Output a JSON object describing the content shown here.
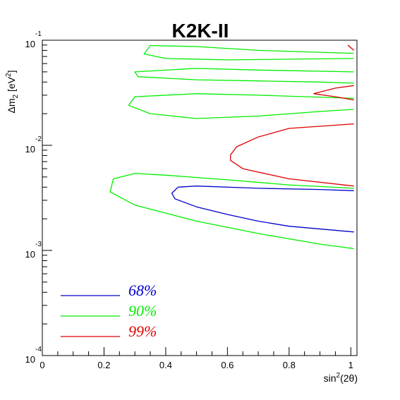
{
  "chart_data": {
    "type": "line",
    "title": "K2K-II",
    "xlabel": {
      "base": "sin",
      "sup": "2",
      "rest": "(2θ)"
    },
    "ylabel": {
      "delta": "Δm",
      "sub": "2",
      "unit_open": " [eV",
      "unit_sup": "2",
      "unit_close": "]"
    },
    "xlim": [
      0,
      1.02
    ],
    "ylim": [
      0.0001,
      0.1
    ],
    "yscale": "log",
    "x_ticks": [
      "0",
      "0.2",
      "0.4",
      "0.6",
      "0.8",
      "1"
    ],
    "y_ticks": [
      {
        "mant": "10",
        "exp": "-1"
      },
      {
        "mant": "10",
        "exp": "-2"
      },
      {
        "mant": "10",
        "exp": "-3"
      },
      {
        "mant": "10",
        "exp": "-4"
      }
    ],
    "grid": false,
    "legend_position": "bottom-left",
    "colors": {
      "c68": "#0000cc",
      "c90": "#00ee00",
      "c99": "#dd0000"
    },
    "series": [
      {
        "name": "68%",
        "color": "#0000cc",
        "x": [
          1.01,
          0.9,
          0.7,
          0.5,
          0.44,
          0.42,
          0.43,
          0.5,
          0.6,
          0.7,
          0.8,
          1.01
        ],
        "y": [
          0.0037,
          0.0038,
          0.0039,
          0.0041,
          0.004,
          0.0035,
          0.0031,
          0.0026,
          0.0022,
          0.0019,
          0.0017,
          0.0015
        ]
      },
      {
        "name": "90%",
        "color": "#00ee00",
        "x": [
          1.01,
          0.7,
          0.5,
          0.35,
          0.33,
          0.4,
          0.6,
          0.8,
          1.01
        ],
        "y": [
          0.075,
          0.08,
          0.087,
          0.089,
          0.074,
          0.067,
          0.065,
          0.066,
          0.067
        ]
      },
      {
        "name": "90%",
        "color": "#00ee00",
        "x": [
          1.01,
          0.7,
          0.5,
          0.3,
          0.31,
          0.5,
          0.7,
          0.9,
          1.01
        ],
        "y": [
          0.05,
          0.052,
          0.054,
          0.05,
          0.045,
          0.042,
          0.041,
          0.04,
          0.039
        ]
      },
      {
        "name": "90%",
        "color": "#00ee00",
        "x": [
          1.01,
          0.7,
          0.5,
          0.3,
          0.28,
          0.35,
          0.5,
          0.7,
          0.9,
          1.01
        ],
        "y": [
          0.028,
          0.03,
          0.031,
          0.029,
          0.024,
          0.02,
          0.018,
          0.019,
          0.021,
          0.022
        ]
      },
      {
        "name": "90%",
        "color": "#00ee00",
        "x": [
          1.01,
          0.8,
          0.6,
          0.4,
          0.3,
          0.23,
          0.22,
          0.3,
          0.5,
          0.7,
          0.9,
          1.01
        ],
        "y": [
          0.0039,
          0.0042,
          0.0047,
          0.0052,
          0.0054,
          0.0048,
          0.0036,
          0.0027,
          0.0019,
          0.00145,
          0.00115,
          0.00104
        ]
      },
      {
        "name": "99%",
        "color": "#dd0000",
        "x": [
          0.99,
          1.01
        ],
        "y": [
          0.09,
          0.08
        ]
      },
      {
        "name": "99%",
        "color": "#dd0000",
        "x": [
          1.01,
          0.95,
          0.88,
          0.95,
          1.01
        ],
        "y": [
          0.037,
          0.035,
          0.031,
          0.029,
          0.027
        ]
      },
      {
        "name": "99%",
        "color": "#dd0000",
        "x": [
          1.01,
          0.8,
          0.7,
          0.63,
          0.61,
          0.61,
          0.65,
          0.8,
          1.01
        ],
        "y": [
          0.016,
          0.0145,
          0.012,
          0.0097,
          0.0081,
          0.0072,
          0.006,
          0.0048,
          0.0041
        ]
      }
    ],
    "legend": [
      {
        "label": "68%",
        "color": "#0000cc"
      },
      {
        "label": "90%",
        "color": "#00ee00"
      },
      {
        "label": "99%",
        "color": "#dd0000"
      }
    ]
  }
}
